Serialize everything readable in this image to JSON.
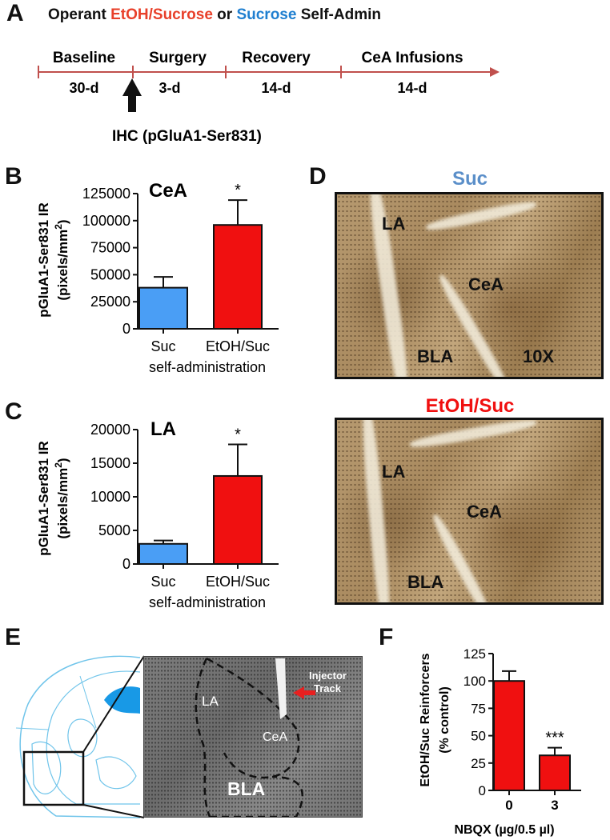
{
  "panelA": {
    "letter": "A",
    "title_parts": [
      {
        "text": "Operant ",
        "color": "#111111"
      },
      {
        "text": "EtOH/Sucrose",
        "color": "#e8402a"
      },
      {
        "text": " or ",
        "color": "#111111"
      },
      {
        "text": "Sucrose",
        "color": "#1f7fd0"
      },
      {
        "text": " Self-Admin",
        "color": "#111111"
      }
    ],
    "phases": [
      {
        "label": "Baseline",
        "duration": "30-d"
      },
      {
        "label": "Surgery",
        "duration": "3-d"
      },
      {
        "label": "Recovery",
        "duration": "14-d"
      },
      {
        "label": "CeA Infusions",
        "duration": "14-d"
      }
    ],
    "marker_label": "IHC (pGluA1-Ser831)"
  },
  "panelD": {
    "letter": "D",
    "top": {
      "title": "Suc",
      "labels": [
        "LA",
        "CeA",
        "BLA",
        "10X"
      ]
    },
    "bottom": {
      "title": "EtOH/Suc",
      "labels": [
        "LA",
        "CeA",
        "BLA"
      ]
    }
  },
  "panelE": {
    "letter": "E",
    "labels": [
      "LA",
      "CeA",
      "BLA",
      "Injector",
      "Track"
    ]
  },
  "colors": {
    "suc": "#4a9ef5",
    "etoh": "#f01010",
    "timeline": "#c0504d",
    "title_suc": "#5b8fc9",
    "title_etoh": "#f01010"
  },
  "chart_data": [
    {
      "panel": "B",
      "type": "bar",
      "title": "CeA",
      "categories": [
        "Suc",
        "EtOH/Suc"
      ],
      "values": [
        38000,
        96000
      ],
      "errors": [
        10000,
        23000
      ],
      "bar_colors": [
        "#4a9ef5",
        "#f01010"
      ],
      "annotations": [
        "",
        "*"
      ],
      "ylabel_line1": "pGluA1-Ser831 IR",
      "ylabel_line2": "(pixels/mm",
      "ylabel_sup": "2",
      "ylabel_close": ")",
      "xlabel": "self-administration",
      "ylim": [
        0,
        125000
      ],
      "yticks": [
        0,
        25000,
        50000,
        75000,
        100000,
        125000
      ]
    },
    {
      "panel": "C",
      "type": "bar",
      "title": "LA",
      "categories": [
        "Suc",
        "EtOH/Suc"
      ],
      "values": [
        3000,
        13100
      ],
      "errors": [
        500,
        4700
      ],
      "bar_colors": [
        "#4a9ef5",
        "#f01010"
      ],
      "annotations": [
        "",
        "*"
      ],
      "ylabel_line1": "pGluA1-Ser831 IR",
      "ylabel_line2": "(pixels/mm",
      "ylabel_sup": "2",
      "ylabel_close": ")",
      "xlabel": "self-administration",
      "ylim": [
        0,
        20000
      ],
      "yticks": [
        0,
        5000,
        10000,
        15000,
        20000
      ]
    },
    {
      "panel": "F",
      "type": "bar",
      "title": "",
      "categories": [
        "0",
        "3"
      ],
      "values": [
        100,
        32
      ],
      "errors": [
        9,
        7
      ],
      "bar_colors": [
        "#f01010",
        "#f01010"
      ],
      "annotations": [
        "",
        "***"
      ],
      "ylabel_line1": "EtOH/Suc Reinforcers",
      "ylabel_line2": "(% control)",
      "ylabel_sup": "",
      "ylabel_close": "",
      "xlabel": "NBQX (µg/0.5 µl)",
      "ylim": [
        0,
        125
      ],
      "yticks": [
        0,
        25,
        50,
        75,
        100,
        125
      ]
    }
  ]
}
